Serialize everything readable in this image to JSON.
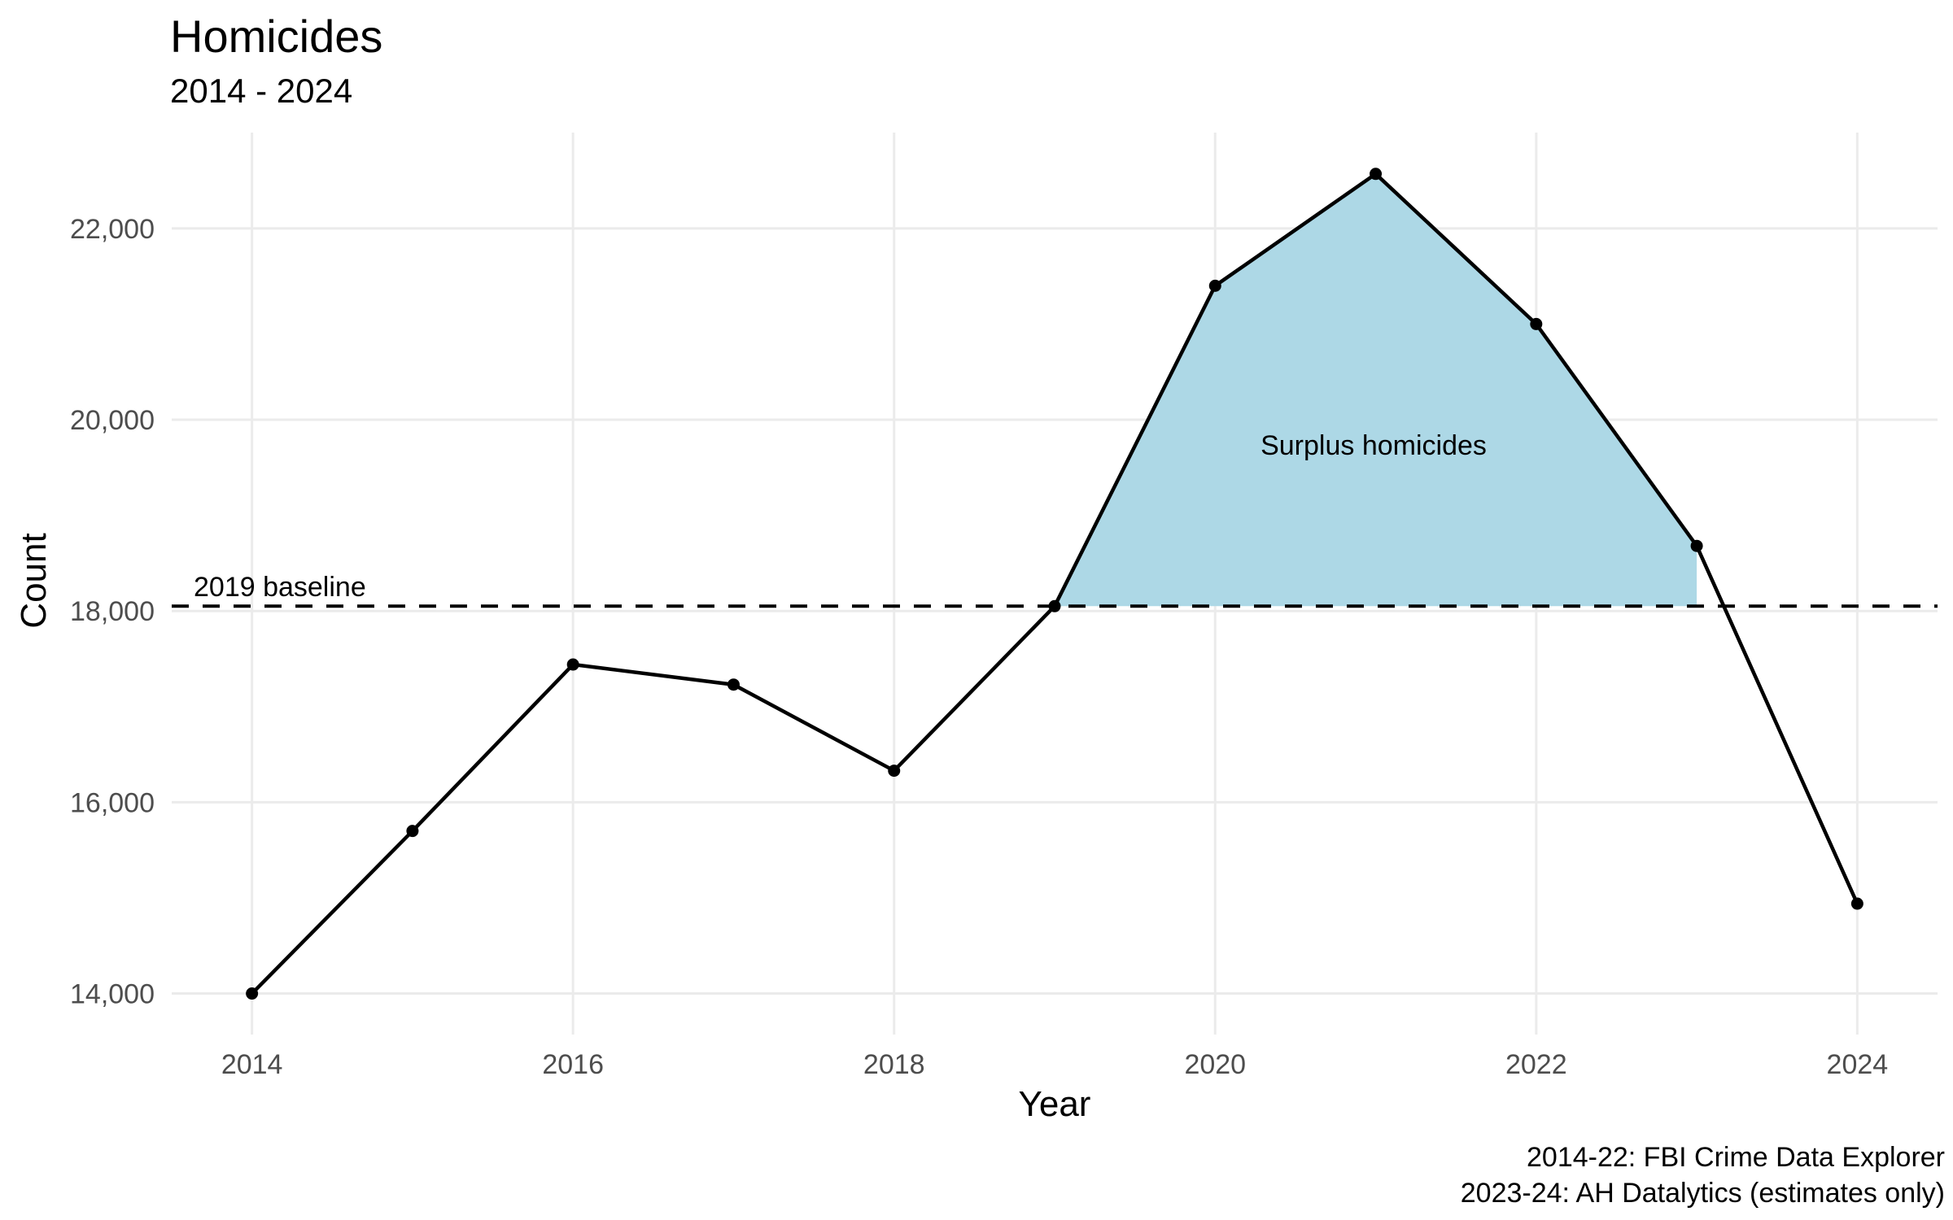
{
  "chart_data": {
    "type": "line",
    "title": "Homicides",
    "subtitle": "2014 - 2024",
    "xlabel": "Year",
    "ylabel": "Count",
    "x": [
      2014,
      2015,
      2016,
      2017,
      2018,
      2019,
      2020,
      2021,
      2022,
      2023,
      2024
    ],
    "values": [
      14000,
      15700,
      17440,
      17230,
      16330,
      18050,
      21400,
      22570,
      21000,
      18680,
      14940
    ],
    "xlim": [
      2013.5,
      2024.5
    ],
    "ylim": [
      13571,
      23002
    ],
    "x_ticks": [
      2014,
      2016,
      2018,
      2020,
      2022,
      2024
    ],
    "x_tick_labels": [
      "2014",
      "2016",
      "2018",
      "2020",
      "2022",
      "2024"
    ],
    "y_ticks": [
      14000,
      16000,
      18000,
      20000,
      22000
    ],
    "y_tick_labels": [
      "14,000",
      "16,000",
      "18,000",
      "20,000",
      "22,000"
    ],
    "grid": "major-only",
    "legend": "none",
    "baseline": {
      "label": "2019 baseline",
      "value": 18050,
      "style": "dashed"
    },
    "shaded_region": {
      "label": "Surplus homicides",
      "from_year": 2019,
      "to_year": 2023,
      "bottom_value": 18050
    },
    "caption_lines": [
      "2014-22: FBI Crime Data Explorer",
      "2023-24: AH Datalytics (estimates only)"
    ],
    "colors": {
      "line": "#000000",
      "point": "#000000",
      "area_fill": "#ADD8E6",
      "gridline": "#EBEBEB",
      "tick_label": "#4D4D4D",
      "text": "#000000",
      "background": "#FFFFFF"
    }
  }
}
